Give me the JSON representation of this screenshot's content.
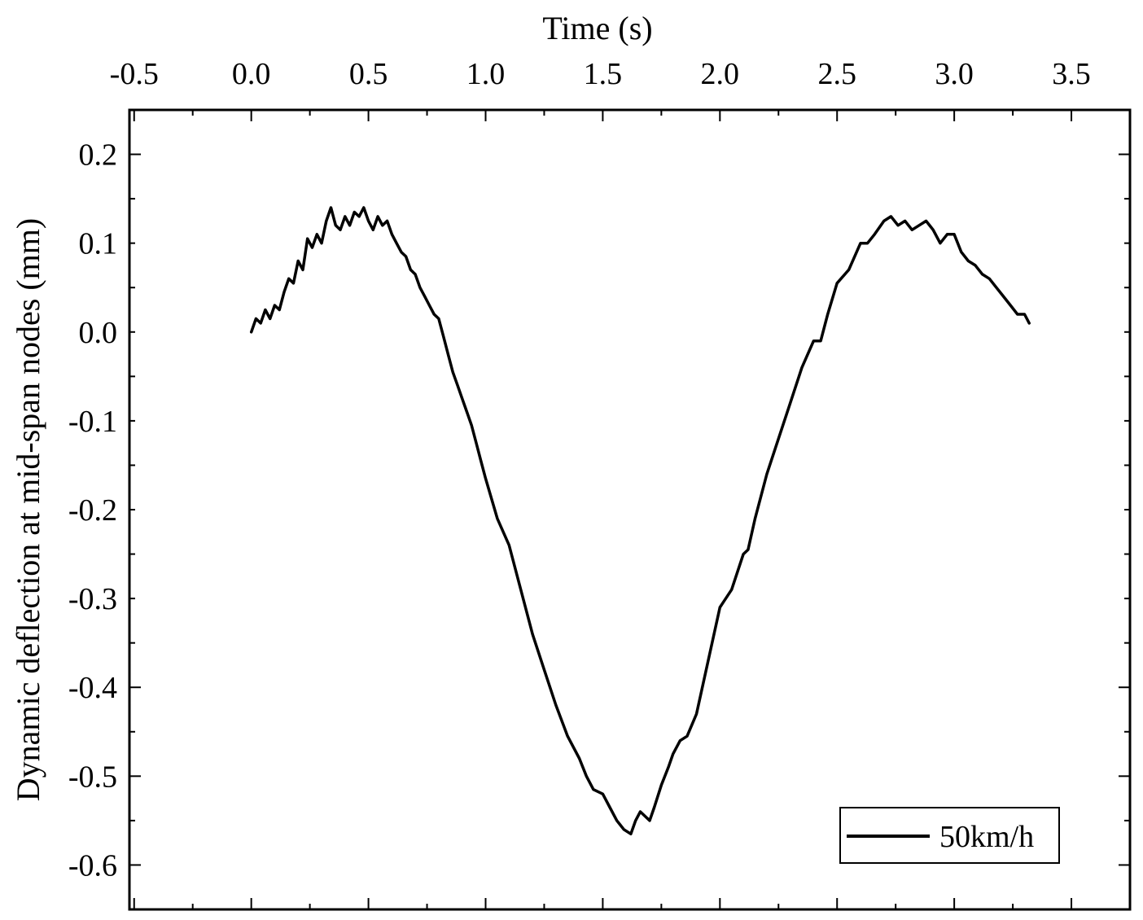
{
  "chart_data": {
    "type": "line",
    "title": "",
    "xlabel": "Time (s)",
    "ylabel": "Dynamic deflection at mid-span nodes (mm)",
    "xaxis_position": "top",
    "xlim": [
      -0.52,
      3.75
    ],
    "ylim": [
      -0.65,
      0.25
    ],
    "xticks": [
      -0.5,
      0.0,
      0.5,
      1.0,
      1.5,
      2.0,
      2.5,
      3.0,
      3.5
    ],
    "xtick_labels": [
      "-0.5",
      "0.0",
      "0.5",
      "1.0",
      "1.5",
      "2.0",
      "2.5",
      "3.0",
      "3.5"
    ],
    "yticks": [
      0.2,
      0.1,
      0.0,
      -0.1,
      -0.2,
      -0.3,
      -0.4,
      -0.5,
      -0.6
    ],
    "ytick_labels": [
      "0.2",
      "0.1",
      "0.0",
      "-0.1",
      "-0.2",
      "-0.3",
      "-0.4",
      "-0.5",
      "-0.6"
    ],
    "grid": false,
    "legend_position": "bottom-right",
    "series": [
      {
        "name": "50km/h",
        "color": "#000000",
        "x": [
          0.0,
          0.02,
          0.04,
          0.06,
          0.08,
          0.1,
          0.12,
          0.14,
          0.16,
          0.18,
          0.2,
          0.22,
          0.24,
          0.26,
          0.28,
          0.3,
          0.32,
          0.34,
          0.36,
          0.38,
          0.4,
          0.42,
          0.44,
          0.46,
          0.48,
          0.5,
          0.52,
          0.54,
          0.56,
          0.58,
          0.6,
          0.62,
          0.64,
          0.66,
          0.68,
          0.7,
          0.72,
          0.74,
          0.76,
          0.78,
          0.8,
          0.82,
          0.84,
          0.86,
          0.88,
          0.9,
          0.92,
          0.94,
          0.96,
          0.98,
          1.0,
          1.05,
          1.1,
          1.15,
          1.2,
          1.25,
          1.3,
          1.35,
          1.4,
          1.43,
          1.46,
          1.5,
          1.53,
          1.56,
          1.59,
          1.62,
          1.64,
          1.66,
          1.68,
          1.7,
          1.72,
          1.75,
          1.78,
          1.8,
          1.83,
          1.86,
          1.9,
          1.95,
          2.0,
          2.05,
          2.1,
          2.12,
          2.15,
          2.2,
          2.25,
          2.3,
          2.35,
          2.4,
          2.43,
          2.46,
          2.5,
          2.55,
          2.6,
          2.63,
          2.66,
          2.7,
          2.73,
          2.76,
          2.79,
          2.82,
          2.85,
          2.88,
          2.91,
          2.94,
          2.97,
          3.0,
          3.03,
          3.06,
          3.09,
          3.12,
          3.15,
          3.18,
          3.21,
          3.24,
          3.27,
          3.3,
          3.32
        ],
        "y": [
          0.0,
          0.015,
          0.01,
          0.025,
          0.015,
          0.03,
          0.025,
          0.045,
          0.06,
          0.055,
          0.08,
          0.07,
          0.105,
          0.095,
          0.11,
          0.1,
          0.125,
          0.14,
          0.12,
          0.115,
          0.13,
          0.12,
          0.135,
          0.13,
          0.14,
          0.125,
          0.115,
          0.13,
          0.12,
          0.125,
          0.11,
          0.1,
          0.09,
          0.085,
          0.07,
          0.065,
          0.05,
          0.04,
          0.03,
          0.02,
          0.015,
          -0.005,
          -0.025,
          -0.045,
          -0.06,
          -0.075,
          -0.09,
          -0.105,
          -0.125,
          -0.145,
          -0.165,
          -0.21,
          -0.24,
          -0.29,
          -0.34,
          -0.38,
          -0.42,
          -0.455,
          -0.48,
          -0.5,
          -0.515,
          -0.52,
          -0.535,
          -0.55,
          -0.56,
          -0.565,
          -0.55,
          -0.54,
          -0.545,
          -0.55,
          -0.535,
          -0.51,
          -0.49,
          -0.475,
          -0.46,
          -0.455,
          -0.43,
          -0.37,
          -0.31,
          -0.29,
          -0.25,
          -0.245,
          -0.21,
          -0.16,
          -0.12,
          -0.08,
          -0.04,
          -0.01,
          -0.01,
          0.02,
          0.055,
          0.07,
          0.1,
          0.1,
          0.11,
          0.125,
          0.13,
          0.12,
          0.125,
          0.115,
          0.12,
          0.125,
          0.115,
          0.1,
          0.11,
          0.11,
          0.09,
          0.08,
          0.075,
          0.065,
          0.06,
          0.05,
          0.04,
          0.03,
          0.02,
          0.02,
          0.01
        ]
      }
    ]
  }
}
